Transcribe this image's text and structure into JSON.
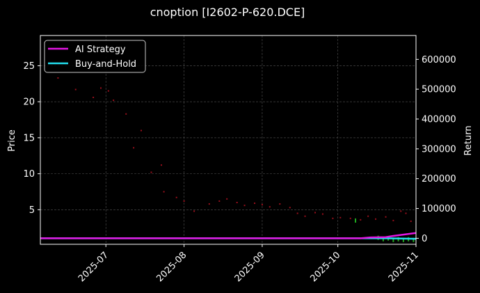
{
  "chart_data": {
    "type": "line",
    "title": "cnoption [I2602-P-620.DCE]",
    "xlabel": "",
    "ylabel": "Price",
    "y2label": "Return",
    "x_ticks": [
      "2025-07",
      "2025-08",
      "2025-09",
      "2025-10",
      "2025-11"
    ],
    "xlim": [
      "2025-06-05",
      "2025-11-01"
    ],
    "ylim": [
      0.2,
      29.2
    ],
    "y_ticks": [
      5,
      10,
      15,
      20,
      25
    ],
    "y2lim": [
      -20000,
      680000
    ],
    "y2_ticks": [
      0,
      100000,
      200000,
      300000,
      400000,
      500000,
      600000
    ],
    "grid": true,
    "legend_position": "upper-left",
    "colors": {
      "background": "#000000",
      "ai_strategy": "#e316e3",
      "buy_and_hold": "#23e0f0",
      "price_points": "#9b0f1c",
      "signals": "#1faa1f",
      "grid": "#555555"
    },
    "series": [
      {
        "name": "AI Strategy",
        "axis": "right",
        "points": [
          [
            "2025-06-05",
            0
          ],
          [
            "2025-10-10",
            0
          ],
          [
            "2025-10-14",
            3000
          ],
          [
            "2025-10-20",
            4000
          ],
          [
            "2025-10-23",
            8000
          ],
          [
            "2025-11-01",
            18000
          ]
        ]
      },
      {
        "name": "Buy-and-Hold",
        "axis": "right",
        "points": [
          [
            "2025-06-05",
            0
          ],
          [
            "2025-10-20",
            0
          ],
          [
            "2025-11-01",
            -1500
          ]
        ]
      }
    ],
    "price_points": [
      [
        "2025-06-12",
        23.3
      ],
      [
        "2025-06-19",
        21.7
      ],
      [
        "2025-06-26",
        20.6
      ],
      [
        "2025-06-29",
        21.9
      ],
      [
        "2025-07-02",
        21.5
      ],
      [
        "2025-07-04",
        20.2
      ],
      [
        "2025-07-09",
        18.3
      ],
      [
        "2025-07-12",
        13.6
      ],
      [
        "2025-07-15",
        16.0
      ],
      [
        "2025-07-19",
        10.2
      ],
      [
        "2025-07-23",
        11.2
      ],
      [
        "2025-07-24",
        7.5
      ],
      [
        "2025-07-29",
        6.7
      ],
      [
        "2025-08-01",
        6.2
      ],
      [
        "2025-08-05",
        4.8
      ],
      [
        "2025-08-11",
        5.8
      ],
      [
        "2025-08-15",
        6.2
      ],
      [
        "2025-08-18",
        6.5
      ],
      [
        "2025-08-22",
        6.0
      ],
      [
        "2025-08-25",
        5.6
      ],
      [
        "2025-08-29",
        5.9
      ],
      [
        "2025-09-01",
        5.7
      ],
      [
        "2025-09-04",
        5.4
      ],
      [
        "2025-09-08",
        5.8
      ],
      [
        "2025-09-12",
        5.3
      ],
      [
        "2025-09-15",
        4.5
      ],
      [
        "2025-09-18",
        4.1
      ],
      [
        "2025-09-22",
        4.6
      ],
      [
        "2025-09-25",
        4.4
      ],
      [
        "2025-09-29",
        3.8
      ],
      [
        "2025-10-02",
        3.9
      ],
      [
        "2025-10-06",
        3.8
      ],
      [
        "2025-10-10",
        3.6
      ],
      [
        "2025-10-13",
        4.1
      ],
      [
        "2025-10-16",
        3.7
      ],
      [
        "2025-10-20",
        4.0
      ],
      [
        "2025-10-23",
        3.5
      ],
      [
        "2025-10-26",
        4.8
      ],
      [
        "2025-10-28",
        4.5
      ],
      [
        "2025-10-30",
        3.4
      ]
    ],
    "signals": [
      [
        "2025-10-08",
        3.5
      ],
      [
        "2025-10-17",
        1.1
      ],
      [
        "2025-10-19",
        0.9
      ],
      [
        "2025-10-21",
        1.0
      ],
      [
        "2025-10-23",
        0.8
      ],
      [
        "2025-10-25",
        0.9
      ],
      [
        "2025-10-27",
        0.8
      ],
      [
        "2025-10-29",
        0.9
      ],
      [
        "2025-10-31",
        0.8
      ]
    ]
  }
}
